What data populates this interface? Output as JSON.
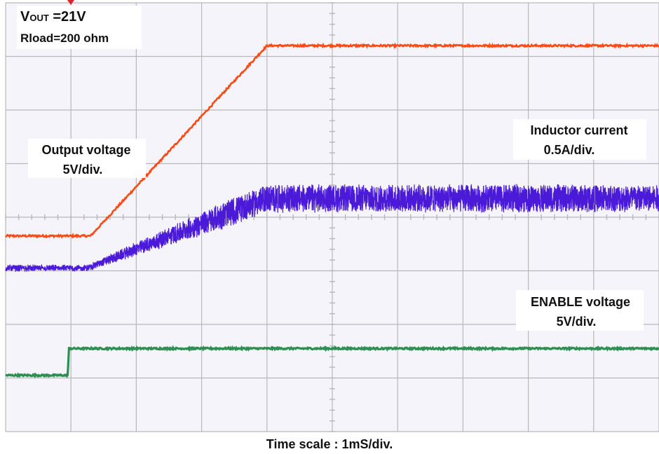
{
  "chart_data": {
    "type": "line",
    "xlabel": "Time scale : 1mS/div.",
    "x_divisions": 10,
    "y_divisions": 8,
    "grid": true,
    "colors": {
      "output_voltage": "#ff4a14",
      "inductor_current": "#4a1ad8",
      "enable_voltage": "#2f8f52",
      "grid": "#b8b8b8",
      "screen_background": "#f4f4fa"
    },
    "annotations": {
      "vout_prefix": "V",
      "vout_sub": "OUT",
      "vout_value": " =21V",
      "rload": "Rload=200 ohm",
      "output_voltage_name": "Output voltage",
      "output_voltage_scale": "5V/div.",
      "inductor_current_name": "Inductor current",
      "inductor_current_scale": "0.5A/div.",
      "enable_voltage_name": "ENABLE voltage",
      "enable_voltage_scale": "5V/div."
    },
    "series": [
      {
        "id": "output_voltage",
        "x": [
          0,
          1.3,
          4.0,
          10
        ],
        "y": [
          -0.35,
          -0.35,
          3.2,
          3.2
        ]
      },
      {
        "id": "inductor_current",
        "x": [
          0,
          1.25,
          4.0,
          10
        ],
        "y": [
          -0.95,
          -0.95,
          0.35,
          0.35
        ],
        "ripple_div": 0.25
      },
      {
        "id": "enable_voltage",
        "x": [
          0,
          0.95,
          0.97,
          10
        ],
        "y": [
          -2.95,
          -2.95,
          -2.45,
          -2.45
        ]
      }
    ]
  }
}
